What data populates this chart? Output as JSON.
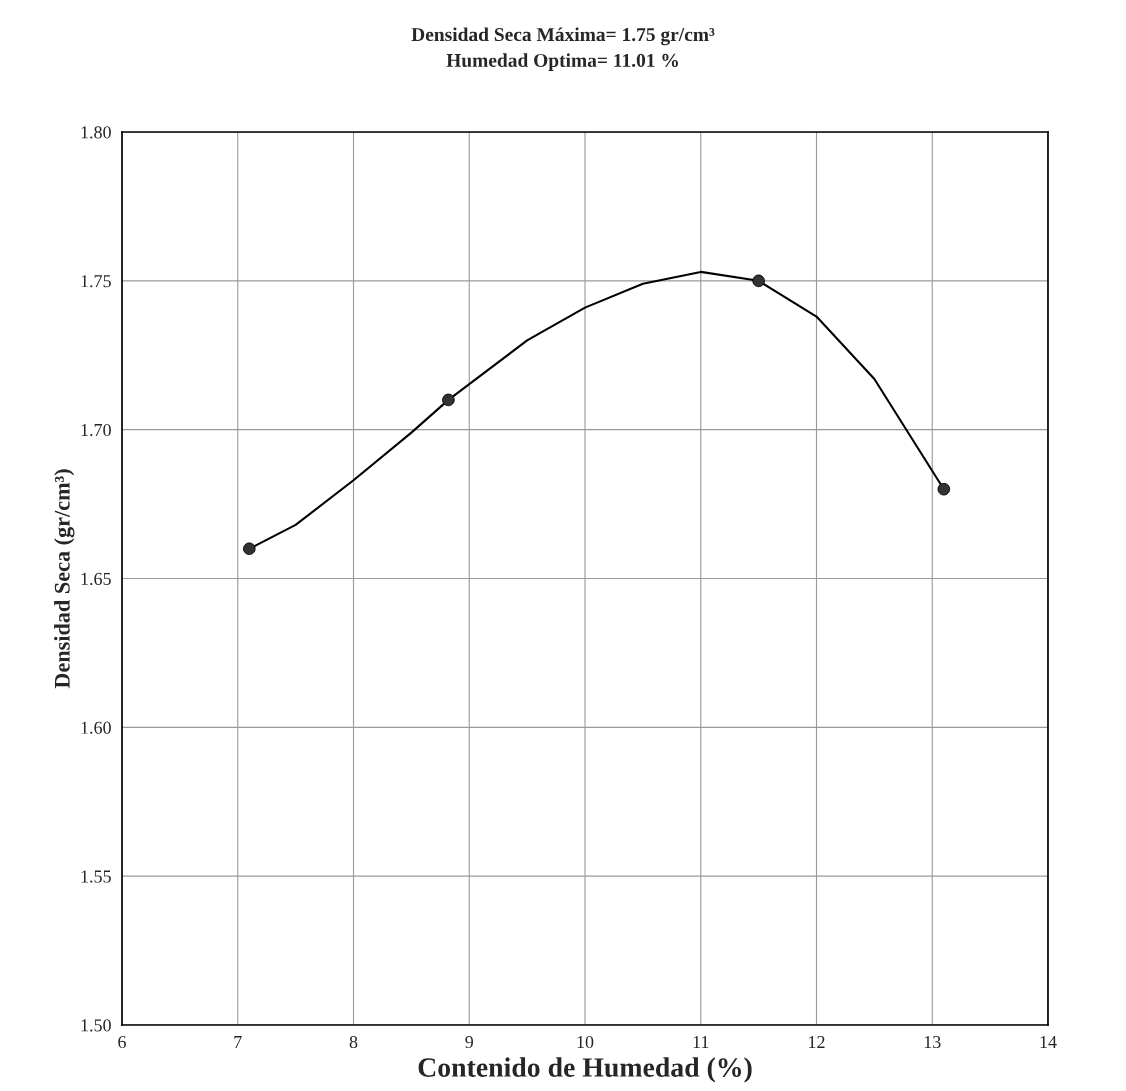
{
  "chart_data": {
    "type": "scatter",
    "title": "Densidad Seca Máxima= 1.75 gr/cm³\nHumedad Optima= 11.01 %",
    "xlabel": "Contenido de Humedad (%)",
    "ylabel": "Densidad Seca (gr/cm³)",
    "xlim": [
      6,
      14
    ],
    "xticks": [
      6,
      7,
      8,
      9,
      10,
      11,
      12,
      13,
      14
    ],
    "ylim": [
      1.5,
      1.8
    ],
    "yticks": [
      {
        "value": 1.5,
        "label": "1.50"
      },
      {
        "value": 1.55,
        "label": "1.55"
      },
      {
        "value": 1.6,
        "label": "1.60"
      },
      {
        "value": 1.65,
        "label": "1.65"
      },
      {
        "value": 1.7,
        "label": "1.70"
      },
      {
        "value": 1.75,
        "label": "1.75"
      },
      {
        "value": 1.8,
        "label": "1.80"
      }
    ],
    "grid": true,
    "series": [
      {
        "type": "line",
        "color": "#000000",
        "marker": "none",
        "line_style": "solid",
        "x": [
          7.1,
          7.5,
          8.0,
          8.5,
          8.82,
          9.5,
          10.0,
          10.5,
          11.0,
          11.5,
          12.0,
          12.5,
          13.1
        ],
        "values": [
          1.66,
          1.668,
          1.683,
          1.699,
          1.71,
          1.73,
          1.741,
          1.749,
          1.753,
          1.75,
          1.738,
          1.717,
          1.68
        ]
      },
      {
        "color": "#333333",
        "marker": "circle",
        "x": [
          7.1,
          8.82,
          11.5,
          13.1
        ],
        "values": [
          1.66,
          1.71,
          1.75,
          1.68
        ]
      }
    ]
  }
}
